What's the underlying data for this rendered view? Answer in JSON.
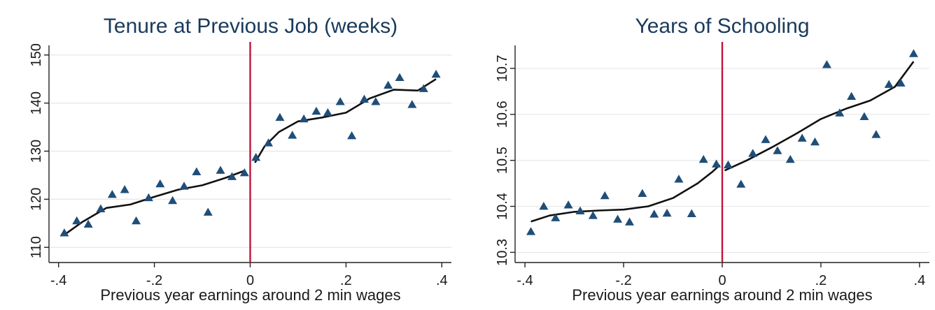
{
  "colors": {
    "marker": "#1f4e79",
    "fit_line": "#111111",
    "cutoff_line": "#c0143c",
    "grid": "#e6e6e6",
    "axis": "#222222"
  },
  "chart_data": [
    {
      "type": "scatter",
      "title": "Tenure at Previous Job (weeks)",
      "xlabel": "Previous year earnings around 2 min wages",
      "ylabel": "",
      "xlim": [
        -0.42,
        0.42
      ],
      "ylim": [
        108,
        152
      ],
      "x_ticks": [
        -0.4,
        -0.2,
        0,
        0.2,
        0.4
      ],
      "x_tick_labels": [
        "-.4",
        "-.2",
        "0",
        ".2",
        ".4"
      ],
      "y_ticks": [
        110,
        120,
        130,
        140,
        150
      ],
      "y_tick_labels": [
        "110",
        "120",
        "130",
        "140",
        "150"
      ],
      "grid": true,
      "cutoff": 0,
      "points": {
        "x": [
          -0.388,
          -0.362,
          -0.338,
          -0.312,
          -0.288,
          -0.262,
          -0.238,
          -0.212,
          -0.188,
          -0.162,
          -0.138,
          -0.112,
          -0.088,
          -0.062,
          -0.038,
          -0.012,
          0.012,
          0.038,
          0.062,
          0.088,
          0.112,
          0.138,
          0.162,
          0.188,
          0.212,
          0.238,
          0.262,
          0.288,
          0.312,
          0.338,
          0.362,
          0.388
        ],
        "y": [
          113.0,
          115.5,
          114.8,
          118.0,
          121.0,
          122.0,
          115.5,
          120.3,
          123.2,
          119.7,
          122.7,
          125.7,
          117.3,
          126.0,
          124.7,
          125.5,
          128.7,
          131.7,
          137.0,
          133.3,
          136.7,
          138.3,
          138.0,
          140.3,
          133.2,
          140.8,
          140.3,
          143.7,
          145.3,
          139.7,
          143.0,
          146.0
        ]
      },
      "fit_segments": [
        {
          "x": [
            -0.388,
            -0.35,
            -0.3,
            -0.25,
            -0.2,
            -0.15,
            -0.1,
            -0.05,
            -0.01
          ],
          "y": [
            112.6,
            115.3,
            118.2,
            118.9,
            120.5,
            122.0,
            122.9,
            124.5,
            126.0
          ]
        },
        {
          "x": [
            0.01,
            0.03,
            0.06,
            0.1,
            0.15,
            0.2,
            0.25,
            0.3,
            0.35,
            0.388
          ],
          "y": [
            127.6,
            131.0,
            134.0,
            136.2,
            137.0,
            138.0,
            141.0,
            142.8,
            142.6,
            145.0
          ]
        }
      ]
    },
    {
      "type": "scatter",
      "title": "Years of Schooling",
      "xlabel": "Previous year earnings around 2 min wages",
      "ylabel": "",
      "xlim": [
        -0.42,
        0.42
      ],
      "ylim": [
        10.29,
        10.75
      ],
      "x_ticks": [
        -0.4,
        -0.2,
        0,
        0.2,
        0.4
      ],
      "x_tick_labels": [
        "-.4",
        "-.2",
        "0",
        ".2",
        ".4"
      ],
      "y_ticks": [
        10.3,
        10.4,
        10.5,
        10.6,
        10.7
      ],
      "y_tick_labels": [
        "10.3",
        "10.4",
        "10.5",
        "10.6",
        "10.7"
      ],
      "grid": true,
      "cutoff": 0,
      "points": {
        "x": [
          -0.388,
          -0.362,
          -0.338,
          -0.312,
          -0.288,
          -0.262,
          -0.238,
          -0.212,
          -0.188,
          -0.162,
          -0.138,
          -0.112,
          -0.088,
          -0.062,
          -0.038,
          -0.012,
          0.012,
          0.038,
          0.062,
          0.088,
          0.112,
          0.138,
          0.162,
          0.188,
          0.212,
          0.238,
          0.262,
          0.288,
          0.312,
          0.338,
          0.362,
          0.388
        ],
        "y": [
          10.345,
          10.4,
          10.375,
          10.403,
          10.39,
          10.38,
          10.423,
          10.372,
          10.366,
          10.428,
          10.383,
          10.385,
          10.459,
          10.384,
          10.502,
          10.492,
          10.49,
          10.448,
          10.515,
          10.545,
          10.521,
          10.502,
          10.548,
          10.54,
          10.708,
          10.603,
          10.639,
          10.595,
          10.556,
          10.665,
          10.668,
          10.732
        ]
      },
      "fit_segments": [
        {
          "x": [
            -0.388,
            -0.35,
            -0.3,
            -0.25,
            -0.2,
            -0.15,
            -0.1,
            -0.05,
            -0.02,
            -0.005
          ],
          "y": [
            10.367,
            10.38,
            10.388,
            10.391,
            10.393,
            10.4,
            10.418,
            10.45,
            10.475,
            10.49
          ]
        },
        {
          "x": [
            0.005,
            0.05,
            0.1,
            0.15,
            0.2,
            0.25,
            0.3,
            0.35,
            0.388
          ],
          "y": [
            10.478,
            10.5,
            10.528,
            10.558,
            10.59,
            10.612,
            10.63,
            10.66,
            10.715
          ]
        }
      ]
    }
  ]
}
